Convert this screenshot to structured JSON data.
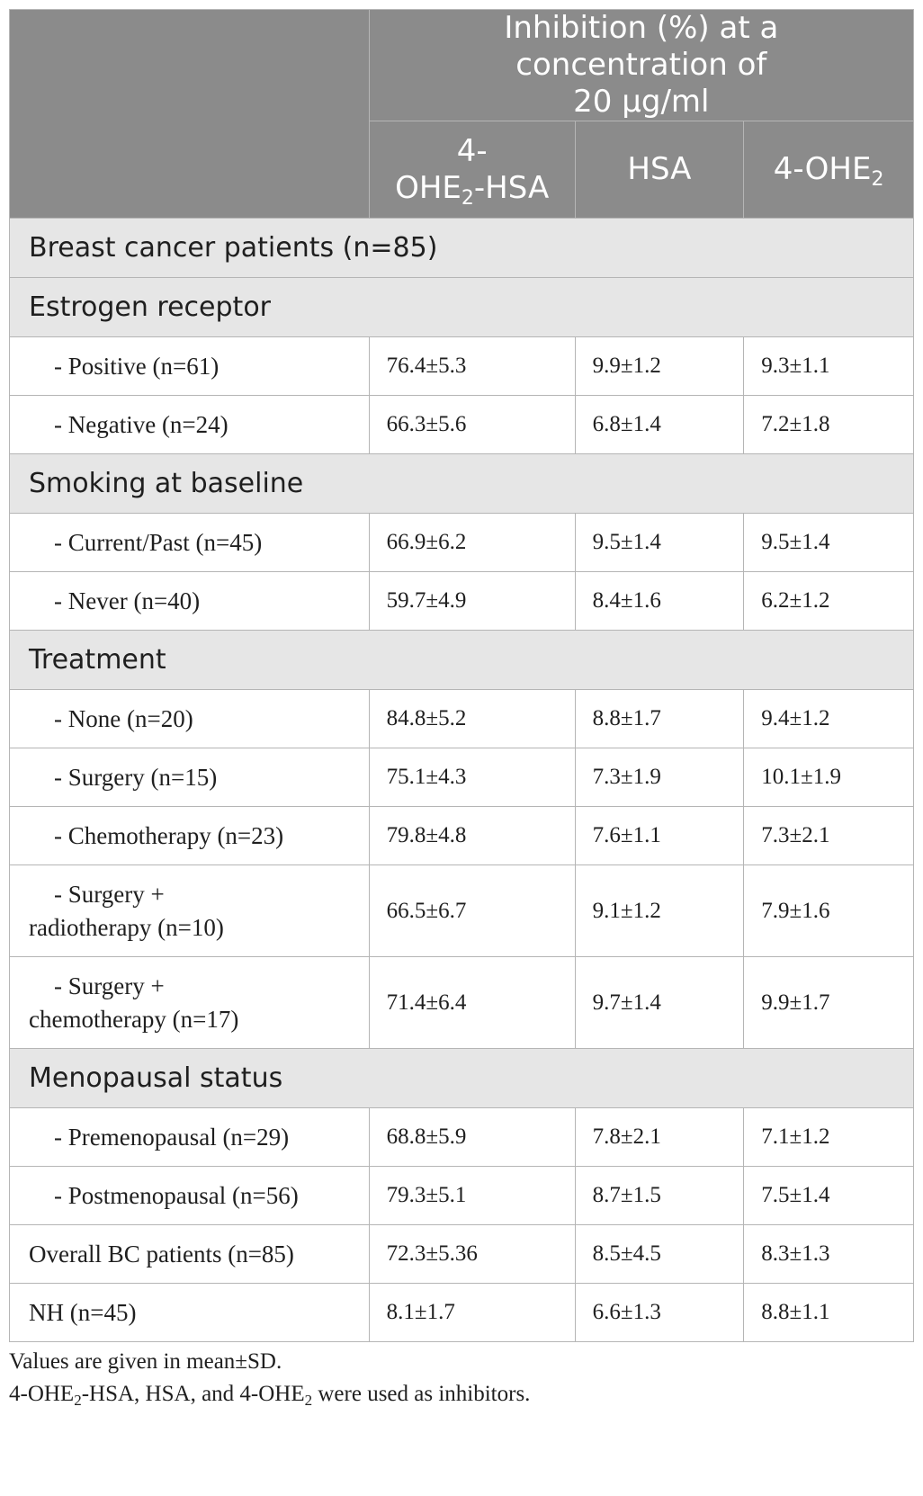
{
  "header": {
    "group_title": "Inhibition (%) at a concentration of 20 µg/ml",
    "col1_prefix": "4-",
    "col1_main": "OHE",
    "col1_sub": "2",
    "col1_suffix": "-HSA",
    "col2": "HSA",
    "col3_main": "4-OHE",
    "col3_sub": "2"
  },
  "title_row": "Breast cancer patients (n=85)",
  "sections": [
    {
      "heading": "Estrogen receptor",
      "rows": [
        {
          "label": "- Positive (n=61)",
          "v1": "76.4±5.3",
          "v2": "9.9±1.2",
          "v3": "9.3±1.1"
        },
        {
          "label": "- Negative (n=24)",
          "v1": "66.3±5.6",
          "v2": "6.8±1.4",
          "v3": "7.2±1.8"
        }
      ]
    },
    {
      "heading": "Smoking at baseline",
      "rows": [
        {
          "label": "- Current/Past (n=45)",
          "v1": "66.9±6.2",
          "v2": "9.5±1.4",
          "v3": "9.5±1.4"
        },
        {
          "label": "- Never (n=40)",
          "v1": "59.7±4.9",
          "v2": "8.4±1.6",
          "v3": "6.2±1.2"
        }
      ]
    },
    {
      "heading": "Treatment",
      "rows": [
        {
          "label": "- None (n=20)",
          "v1": "84.8±5.2",
          "v2": "8.8±1.7",
          "v3": "9.4±1.2"
        },
        {
          "label": "- Surgery (n=15)",
          "v1": "75.1±4.3",
          "v2": "7.3±1.9",
          "v3": "10.1±1.9"
        },
        {
          "label": "- Chemotherapy (n=23)",
          "v1": "79.8±4.8",
          "v2": "7.6±1.1",
          "v3": "7.3±2.1"
        },
        {
          "label": "- Surgery +",
          "label2": "radiotherapy (n=10)",
          "v1": "66.5±6.7",
          "v2": "9.1±1.2",
          "v3": "7.9±1.6"
        },
        {
          "label": "- Surgery +",
          "label2": "chemotherapy (n=17)",
          "v1": "71.4±6.4",
          "v2": "9.7±1.4",
          "v3": "9.9±1.7"
        }
      ]
    },
    {
      "heading": "Menopausal status",
      "rows": [
        {
          "label": "- Premenopausal (n=29)",
          "v1": "68.8±5.9",
          "v2": "7.8±2.1",
          "v3": "7.1±1.2"
        },
        {
          "label": "- Postmenopausal (n=56)",
          "v1": "79.3±5.1",
          "v2": "8.7±1.5",
          "v3": "7.5±1.4"
        }
      ]
    }
  ],
  "summary_rows": [
    {
      "label": "Overall BC patients (n=85)",
      "v1": "72.3±5.36",
      "v2": "8.5±4.5",
      "v3": "8.3±1.3"
    },
    {
      "label": "NH (n=45)",
      "v1": "8.1±1.7",
      "v2": "6.6±1.3",
      "v3": "8.8±1.1"
    }
  ],
  "footnotes": {
    "line1": "Values are given in mean±SD.",
    "line2_a": "4-OHE",
    "line2_sub1": "2",
    "line2_b": "-HSA, HSA, and 4-OHE",
    "line2_sub2": "2",
    "line2_c": " were used as inhibitors."
  }
}
